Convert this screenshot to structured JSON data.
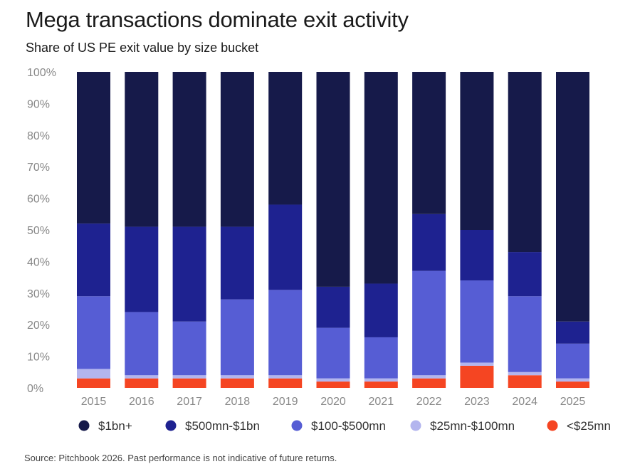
{
  "title": "Mega transactions dominate exit activity",
  "subtitle": "Share of US PE exit value by size bucket",
  "source": "Source: Pitchbook 2026. Past performance is not indicative of future returns.",
  "chart_data": {
    "type": "bar",
    "stacked": true,
    "title": "Mega transactions dominate exit activity",
    "subtitle": "Share of US PE exit value by size bucket",
    "xlabel": "",
    "ylabel": "",
    "ylim": [
      0,
      100
    ],
    "yticks": [
      "0%",
      "10%",
      "20%",
      "30%",
      "40%",
      "50%",
      "60%",
      "70%",
      "80%",
      "90%",
      "100%"
    ],
    "categories": [
      "2015",
      "2016",
      "2017",
      "2018",
      "2019",
      "2020",
      "2021",
      "2022",
      "2023",
      "2024",
      "2025"
    ],
    "legend_position": "bottom",
    "series": [
      {
        "name": "<$25mn",
        "color": "#f54522",
        "values": [
          3,
          3,
          3,
          3,
          3,
          2,
          2,
          3,
          7,
          4,
          2
        ]
      },
      {
        "name": "$25mn-$100mn",
        "color": "#b3b5ee",
        "values": [
          3,
          1,
          1,
          1,
          1,
          1,
          1,
          1,
          1,
          1,
          1
        ]
      },
      {
        "name": "$100-$500mn",
        "color": "#565dd4",
        "values": [
          23,
          20,
          17,
          24,
          27,
          16,
          13,
          33,
          26,
          24,
          11
        ]
      },
      {
        "name": "$500mn-$1bn",
        "color": "#1e2290",
        "values": [
          23,
          27,
          30,
          23,
          27,
          13,
          17,
          18,
          16,
          14,
          7
        ]
      },
      {
        "name": "$1bn+",
        "color": "#161a4a",
        "values": [
          48,
          49,
          49,
          49,
          42,
          68,
          67,
          45,
          50,
          57,
          79
        ]
      }
    ],
    "legend_order": [
      "$1bn+",
      "$500mn-$1bn",
      "$100-$500mn",
      "$25mn-$100mn",
      "<$25mn"
    ]
  }
}
